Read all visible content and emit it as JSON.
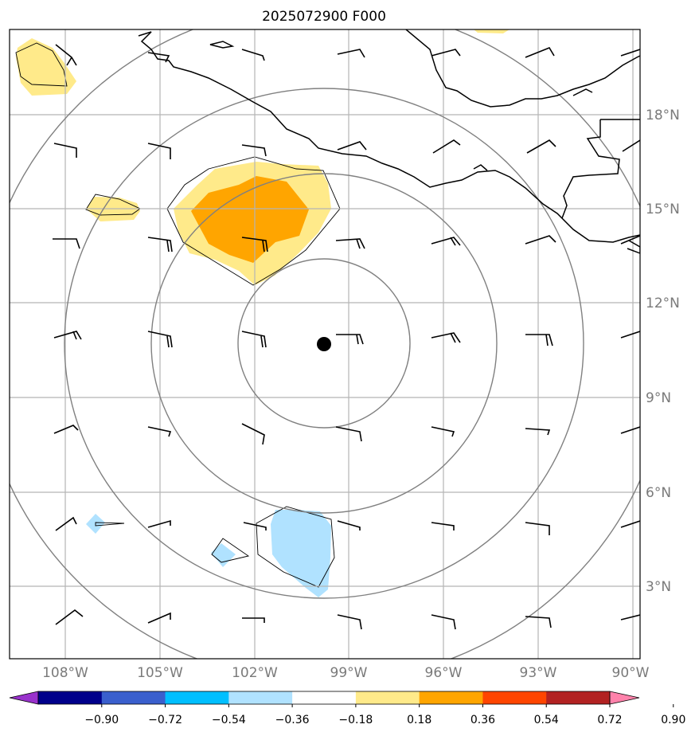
{
  "title": "2025072900 F000",
  "lat_labels": [
    "18°N",
    "15°N",
    "12°N",
    "9°N",
    "6°N",
    "3°N"
  ],
  "lon_labels": [
    "108°W",
    "105°W",
    "102°W",
    "99°W",
    "96°W",
    "93°W",
    "90°W"
  ],
  "colorbar": {
    "tick_labels": [
      "−0.90",
      "−0.72",
      "−0.54",
      "−0.36",
      "−0.18",
      "0.18",
      "0.36",
      "0.54",
      "0.72",
      "0.90"
    ],
    "colors": [
      "#9932cc",
      "#00008b",
      "#3a5fcd",
      "#00bfff",
      "#b0e2ff",
      "#ffffff",
      "#ffea8a",
      "#ffa500",
      "#ff4500",
      "#b22222",
      "#ff82ab"
    ]
  },
  "center_marker": {
    "lon": -99.8,
    "lat": 10.7
  },
  "range_rings": {
    "count": 4
  }
}
